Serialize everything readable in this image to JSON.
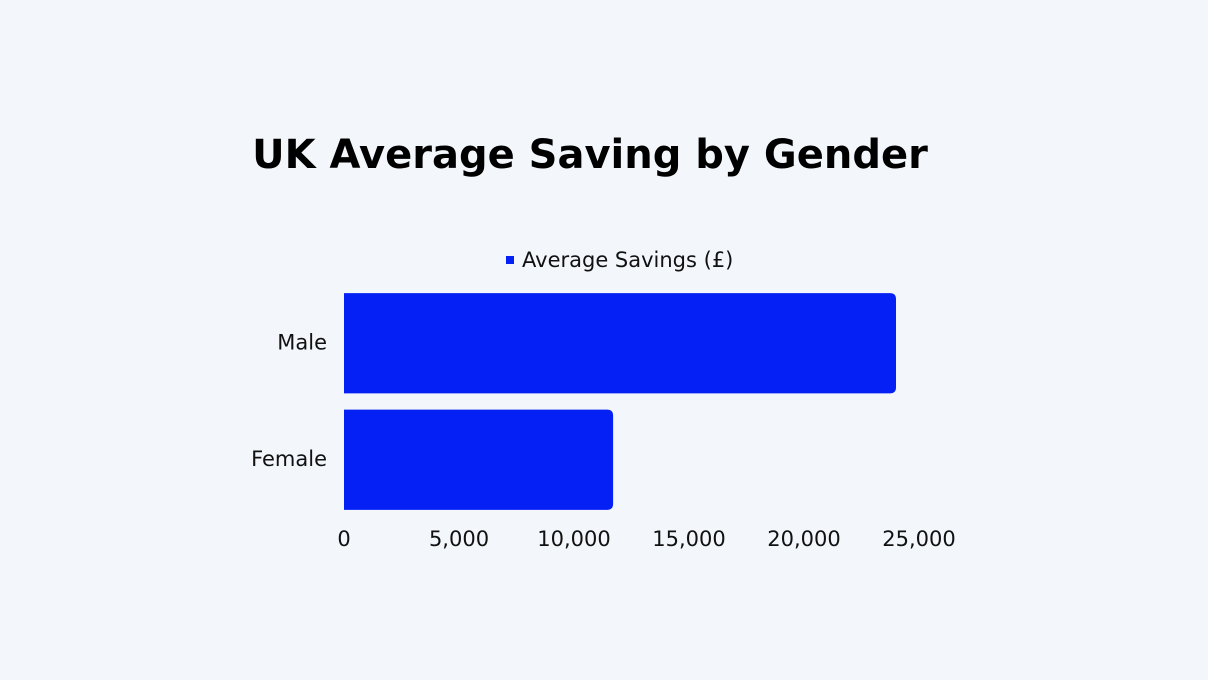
{
  "chart_data": {
    "type": "bar",
    "orientation": "horizontal",
    "title": "UK Average Saving by Gender",
    "categories": [
      "Male",
      "Female"
    ],
    "series": [
      {
        "name": "Average Savings (£)",
        "color": "#0420f5",
        "values": [
          24000,
          11700
        ]
      }
    ],
    "xlim": [
      0,
      25000
    ],
    "xticks": [
      0,
      {
        "value": 5000,
        "label": "5,000"
      },
      {
        "value": 10000,
        "label": "10,000"
      },
      {
        "value": 15000,
        "label": "15,000"
      },
      {
        "value": 20000,
        "label": "20,000"
      },
      {
        "value": 25000,
        "label": "25,000"
      }
    ],
    "legend": "top",
    "grid": false
  }
}
